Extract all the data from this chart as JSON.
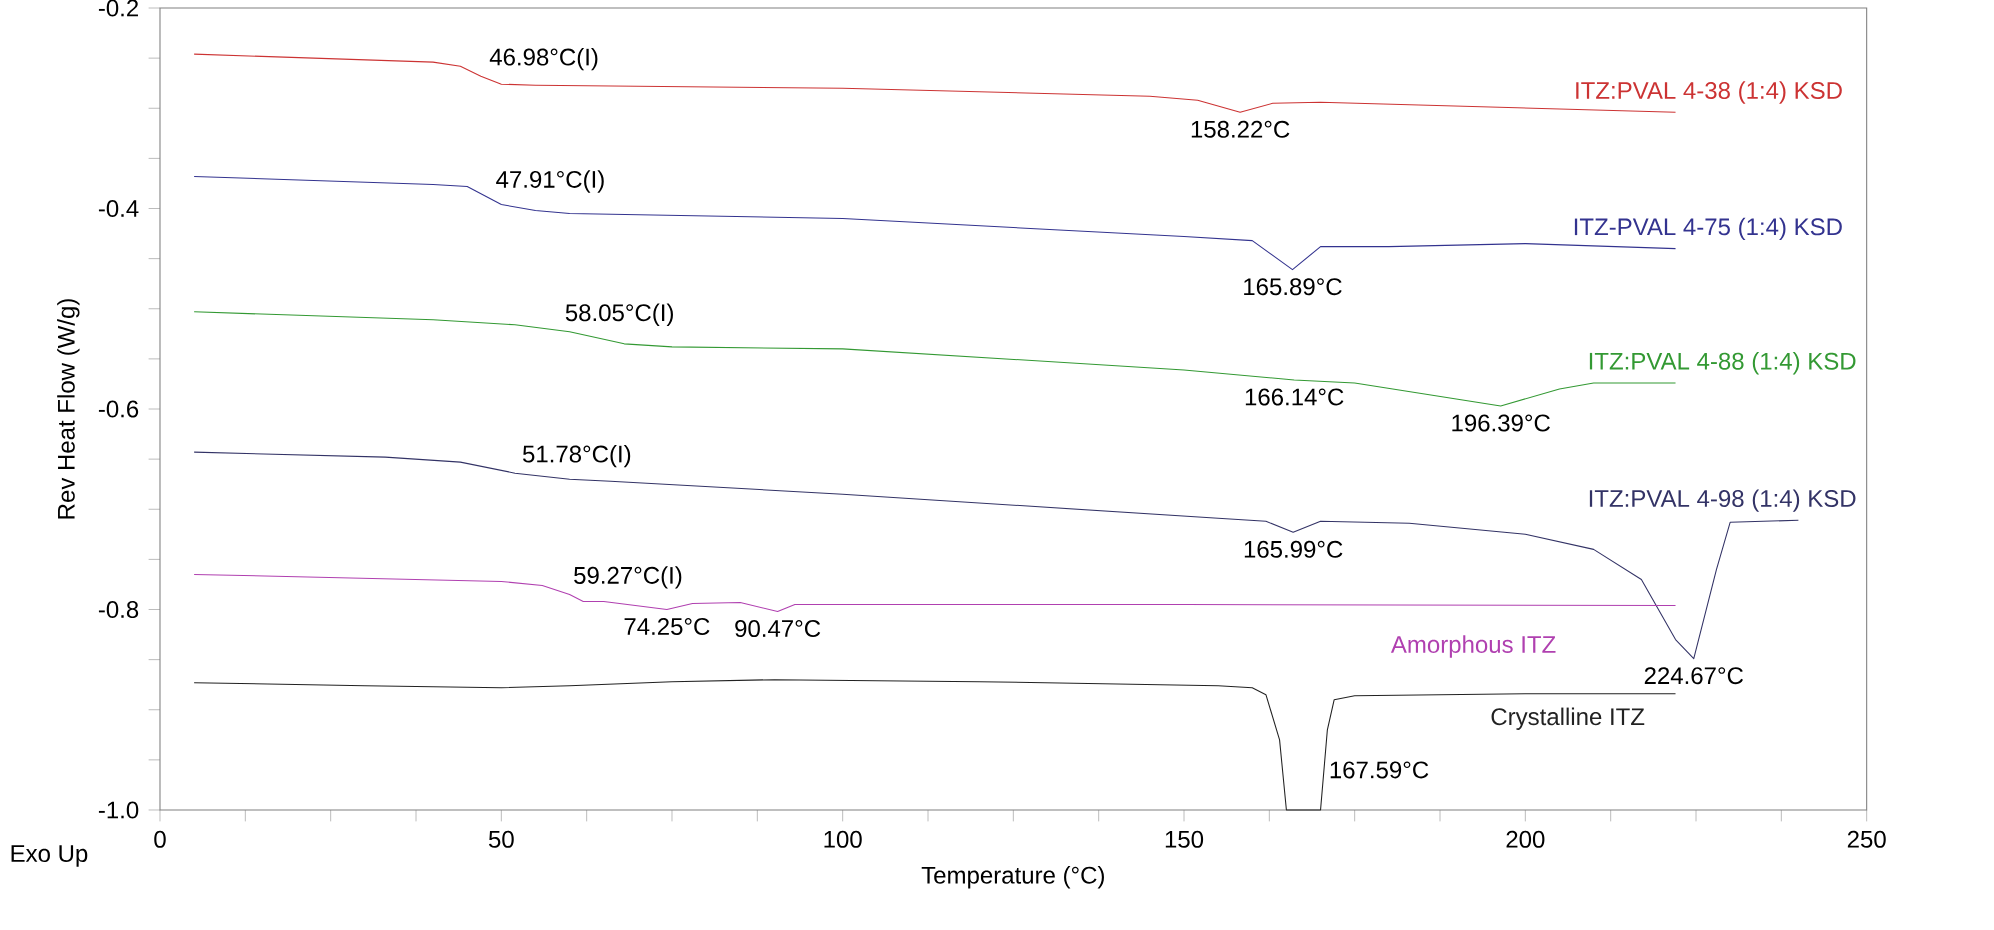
{
  "chart_data": {
    "type": "line",
    "xlabel": "Temperature (°C)",
    "ylabel": "Rev Heat Flow (W/g)",
    "xlim": [
      0,
      250
    ],
    "ylim": [
      -1.0,
      -0.2
    ],
    "xticks": [
      0,
      {
        "value": 12.5,
        "label": null
      },
      {
        "value": 25,
        "label": null
      },
      {
        "value": 37.5,
        "label": null
      },
      50,
      {
        "value": 62.5,
        "label": null
      },
      {
        "value": 75,
        "label": null
      },
      {
        "value": 87.5,
        "label": null
      },
      100,
      {
        "value": 112.5,
        "label": null
      },
      {
        "value": 125,
        "label": null
      },
      {
        "value": 137.5,
        "label": null
      },
      150,
      {
        "value": 162.5,
        "label": null
      },
      {
        "value": 175,
        "label": null
      },
      {
        "value": 187.5,
        "label": null
      },
      200,
      {
        "value": 212.5,
        "label": null
      },
      {
        "value": 225,
        "label": null
      },
      {
        "value": 237.5,
        "label": null
      },
      250
    ],
    "yticks": [
      {
        "value": -1.0,
        "label": "-1.0"
      },
      {
        "value": -0.95,
        "label": null
      },
      {
        "value": -0.9,
        "label": null
      },
      {
        "value": -0.85,
        "label": null
      },
      -0.8,
      {
        "value": -0.75,
        "label": null
      },
      {
        "value": -0.7,
        "label": null
      },
      {
        "value": -0.65,
        "label": null
      },
      -0.6,
      {
        "value": -0.55,
        "label": null
      },
      {
        "value": -0.5,
        "label": null
      },
      {
        "value": -0.45,
        "label": null
      },
      -0.4,
      {
        "value": -0.35,
        "label": null
      },
      {
        "value": -0.3,
        "label": null
      },
      {
        "value": -0.25,
        "label": null
      },
      -0.2
    ],
    "grid": false,
    "legend": false,
    "marker": "none",
    "line_style": "solid",
    "series": [
      {
        "name": "ITZ:PVAL 4-38 (1:4) KSD",
        "color": "#cc3333",
        "x": [
          5,
          40,
          44,
          47,
          50,
          55,
          100,
          145,
          152,
          158.22,
          163,
          170,
          222
        ],
        "values": [
          -0.246,
          -0.254,
          -0.258,
          -0.268,
          -0.276,
          -0.277,
          -0.28,
          -0.288,
          -0.292,
          -0.304,
          -0.295,
          -0.294,
          -0.304
        ]
      },
      {
        "name": "ITZ-PVAL 4-75 (1:4) KSD",
        "color": "#33338f",
        "x": [
          5,
          40,
          45,
          50,
          55,
          60,
          100,
          150,
          160,
          165.89,
          170,
          180,
          200,
          222
        ],
        "values": [
          -0.368,
          -0.376,
          -0.378,
          -0.396,
          -0.402,
          -0.405,
          -0.41,
          -0.428,
          -0.432,
          -0.461,
          -0.438,
          -0.438,
          -0.435,
          -0.44
        ]
      },
      {
        "name": "ITZ:PVAL 4-88 (1:4) KSD",
        "color": "#339933",
        "x": [
          5,
          40,
          52,
          60,
          68,
          75,
          100,
          150,
          166.14,
          175,
          196.39,
          205,
          210,
          222
        ],
        "values": [
          -0.503,
          -0.511,
          -0.516,
          -0.523,
          -0.535,
          -0.538,
          -0.54,
          -0.561,
          -0.571,
          -0.574,
          -0.597,
          -0.58,
          -0.574,
          -0.574
        ]
      },
      {
        "name": "ITZ:PVAL 4-98 (1:4) KSD",
        "color": "#333366",
        "x": [
          5,
          33,
          44,
          52,
          60,
          66,
          100,
          155,
          162,
          165.99,
          170,
          183,
          200,
          210,
          217,
          222,
          224.67,
          228,
          230,
          240
        ],
        "values": [
          -0.643,
          -0.648,
          -0.653,
          -0.664,
          -0.67,
          -0.672,
          -0.685,
          -0.709,
          -0.712,
          -0.723,
          -0.712,
          -0.714,
          -0.725,
          -0.74,
          -0.77,
          -0.83,
          -0.849,
          -0.76,
          -0.713,
          -0.711
        ]
      },
      {
        "name": "Amorphous ITZ",
        "color": "#b040b0",
        "x": [
          5,
          50,
          56,
          60,
          62,
          65,
          74.25,
          78,
          85,
          90.47,
          93,
          100,
          150,
          222
        ],
        "values": [
          -0.765,
          -0.772,
          -0.776,
          -0.785,
          -0.792,
          -0.792,
          -0.8,
          -0.794,
          -0.793,
          -0.802,
          -0.795,
          -0.795,
          -0.795,
          -0.796
        ]
      },
      {
        "name": "Crystalline ITZ",
        "color": "#222222",
        "x": [
          5,
          30,
          50,
          60,
          75,
          90,
          120,
          155,
          160,
          162,
          164,
          165,
          170,
          171,
          172,
          175,
          200,
          222
        ],
        "values": [
          -0.873,
          -0.876,
          -0.878,
          -0.876,
          -0.872,
          -0.87,
          -0.872,
          -0.876,
          -0.878,
          -0.885,
          -0.93,
          -1.0,
          -1.0,
          -0.92,
          -0.89,
          -0.886,
          -0.884,
          -0.884
        ]
      }
    ],
    "annotations": [
      {
        "text": "46.98°C(I)",
        "x": 46.98,
        "y": -0.268
      },
      {
        "text": "158.22°C",
        "x": 158.22,
        "y": -0.304
      },
      {
        "text": "47.91°C(I)",
        "x": 47.91,
        "y": -0.39
      },
      {
        "text": "165.89°C",
        "x": 165.89,
        "y": -0.461
      },
      {
        "text": "58.05°C(I)",
        "x": 58.05,
        "y": -0.523
      },
      {
        "text": "166.14°C",
        "x": 166.14,
        "y": -0.571
      },
      {
        "text": "196.39°C",
        "x": 196.39,
        "y": -0.597
      },
      {
        "text": "51.78°C(I)",
        "x": 51.78,
        "y": -0.664
      },
      {
        "text": "165.99°C",
        "x": 165.99,
        "y": -0.723
      },
      {
        "text": "224.67°C",
        "x": 224.67,
        "y": -0.849
      },
      {
        "text": "59.27°C(I)",
        "x": 59.27,
        "y": -0.785
      },
      {
        "text": "74.25°C",
        "x": 74.25,
        "y": -0.8
      },
      {
        "text": "90.47°C",
        "x": 90.47,
        "y": -0.802
      },
      "167.59°C",
      "Exo Up"
    ]
  }
}
